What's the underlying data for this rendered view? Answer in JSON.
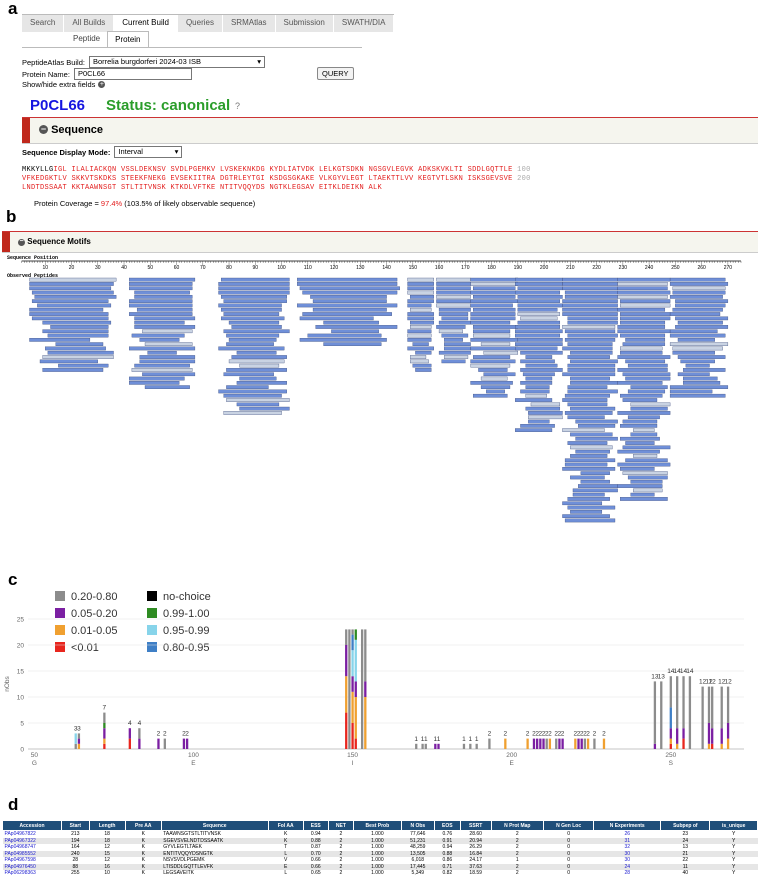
{
  "panel_labels": [
    "a",
    "b",
    "c",
    "d"
  ],
  "nav": {
    "tabs": [
      "Search",
      "All Builds",
      "Current Build",
      "Queries",
      "SRMAtlas",
      "Submission",
      "SWATH/DIA"
    ],
    "active_tab": "Current Build",
    "subtabs": [
      "Peptide",
      "Protein"
    ],
    "active_subtab": "Protein"
  },
  "form": {
    "build_label": "PeptideAtlas Build:",
    "build_value": "Borrelia burgdorferi 2024-03 ISB",
    "protein_label": "Protein Name:",
    "protein_value": "P0CL66",
    "query_button": "QUERY",
    "extra_fields_label": "Show/hide extra fields",
    "extra_fields_icon": "plus-circle-icon"
  },
  "protein": {
    "id": "P0CL66",
    "status": "Status: canonical",
    "help": "?"
  },
  "sequence_section": {
    "title": "Sequence",
    "collapse_icon": "minus-circle-icon",
    "display_mode_label": "Sequence Display Mode:",
    "display_mode_value": "Interval",
    "lines": [
      {
        "lead": "MKKYLLG",
        "text": "IGL ILALIACKQN VSSLDEKNSV SVDLPGEMKV LVSKEKNKDG KYDLIATVDK LELKGTSDKN NGSGVLEGVK ADKSKVKLTI SDDLGQTTLE",
        "num": "100"
      },
      {
        "lead": "",
        "text": "VFKEDGKTLV SKKVTSKDKS STEEKFNEKG EVSEKIITRA DGTRLEYTGI KSDGSGKAKE VLKGYVLEGT LTAEKTTLVV KEGTVTLSKN ISKSGEVSVE",
        "num": "200"
      },
      {
        "lead": "",
        "text": "LNDTDSSAAT KKTAAWNSGT STLTITVNSK KTKDLVFTKE NTITVQQYDS NGTKLEGSAV EITKLDEIKN ALK",
        "num": ""
      }
    ],
    "coverage_prefix": "Protein Coverage = ",
    "coverage_value": "97.4%",
    "coverage_suffix": " (103.5% of likely observable sequence)"
  },
  "motifs_section": {
    "title": "Sequence Motifs",
    "collapse_icon": "minus-circle-icon",
    "position_label": "Sequence Position",
    "peptides_label": "Observed Peptides",
    "ticks": [
      10,
      20,
      30,
      40,
      50,
      60,
      70,
      80,
      90,
      100,
      110,
      120,
      130,
      140,
      150,
      160,
      170,
      180,
      190,
      200,
      210,
      220,
      230,
      240,
      250,
      260,
      270
    ],
    "colors": {
      "peptide": "#6f8fd8",
      "peptide_light": "#c9d3e3",
      "border": "#3a4a7a"
    }
  },
  "chart_data": {
    "type": "bar",
    "ylabel": "nObs",
    "ylim": [
      0,
      25
    ],
    "yticks": [
      0,
      5,
      10,
      15,
      20,
      25
    ],
    "xlim": [
      48,
      273
    ],
    "xticks": [
      {
        "pos": 50,
        "aa": "G"
      },
      {
        "pos": 100,
        "aa": "E"
      },
      {
        "pos": 150,
        "aa": "I"
      },
      {
        "pos": 200,
        "aa": "E"
      },
      {
        "pos": 250,
        "aa": "S"
      }
    ],
    "legend": [
      {
        "label": "0.20-0.80",
        "color": "#8c8c8c"
      },
      {
        "label": "no-choice",
        "color": "#000000"
      },
      {
        "label": "0.05-0.20",
        "color": "#7b1fa2"
      },
      {
        "label": "0.99-1.00",
        "color": "#2e8b22"
      },
      {
        "label": "0.01-0.05",
        "color": "#f0a030"
      },
      {
        "label": "0.95-0.99",
        "color": "#87d4ea"
      },
      {
        "label": "<0.01",
        "color": "#e8261e"
      },
      {
        "label": "0.80-0.95",
        "color": "#3f7fc6"
      }
    ],
    "bars": [
      {
        "x": 63,
        "segs": [
          [
            "#8c8c8c",
            1
          ],
          [
            "#87d4ea",
            2
          ]
        ],
        "label": "3"
      },
      {
        "x": 64,
        "segs": [
          [
            "#f0a030",
            1
          ],
          [
            "#7b1fa2",
            1
          ],
          [
            "#8c8c8c",
            1
          ]
        ],
        "label": "3"
      },
      {
        "x": 72,
        "segs": [
          [
            "#e8261e",
            1
          ],
          [
            "#f0a030",
            1
          ],
          [
            "#7b1fa2",
            2
          ],
          [
            "#2e8b22",
            1
          ],
          [
            "#8c8c8c",
            2
          ]
        ],
        "label": "7"
      },
      {
        "x": 80,
        "segs": [
          [
            "#e8261e",
            2
          ],
          [
            "#7b1fa2",
            2
          ]
        ],
        "label": "4"
      },
      {
        "x": 83,
        "segs": [
          [
            "#7b1fa2",
            2
          ],
          [
            "#8c8c8c",
            2
          ]
        ],
        "label": "4"
      },
      {
        "x": 89,
        "segs": [
          [
            "#7b1fa2",
            2
          ]
        ],
        "label": "2"
      },
      {
        "x": 91,
        "segs": [
          [
            "#8c8c8c",
            2
          ]
        ],
        "label": "2"
      },
      {
        "x": 97,
        "segs": [
          [
            "#7b1fa2",
            2
          ]
        ],
        "label": "2"
      },
      {
        "x": 98,
        "segs": [
          [
            "#7b1fa2",
            2
          ]
        ],
        "label": "2"
      },
      {
        "x": 148,
        "segs": [
          [
            "#e8261e",
            7
          ],
          [
            "#f0a030",
            7
          ],
          [
            "#7b1fa2",
            6
          ],
          [
            "#8c8c8c",
            3
          ]
        ],
        "label": ""
      },
      {
        "x": 149,
        "segs": [
          [
            "#8c8c8c",
            23
          ]
        ],
        "label": ""
      },
      {
        "x": 150,
        "segs": [
          [
            "#e8261e",
            5
          ],
          [
            "#f0a030",
            6
          ],
          [
            "#7b1fa2",
            3
          ],
          [
            "#87d4ea",
            5
          ],
          [
            "#3f7fc6",
            3
          ],
          [
            "#8c8c8c",
            1
          ]
        ],
        "label": ""
      },
      {
        "x": 151,
        "segs": [
          [
            "#e8261e",
            2
          ],
          [
            "#f0a030",
            8
          ],
          [
            "#7b1fa2",
            3
          ],
          [
            "#87d4ea",
            8
          ],
          [
            "#2e8b22",
            2
          ]
        ],
        "label": ""
      },
      {
        "x": 153,
        "segs": [
          [
            "#8c8c8c",
            23
          ]
        ],
        "label": ""
      },
      {
        "x": 154,
        "segs": [
          [
            "#f0a030",
            10
          ],
          [
            "#7b1fa2",
            3
          ],
          [
            "#8c8c8c",
            10
          ]
        ],
        "label": ""
      },
      {
        "x": 170,
        "segs": [
          [
            "#8c8c8c",
            1
          ]
        ],
        "label": "1"
      },
      {
        "x": 172,
        "segs": [
          [
            "#8c8c8c",
            1
          ]
        ],
        "label": "1"
      },
      {
        "x": 173,
        "segs": [
          [
            "#8c8c8c",
            1
          ]
        ],
        "label": "1"
      },
      {
        "x": 176,
        "segs": [
          [
            "#7b1fa2",
            1
          ]
        ],
        "label": "1"
      },
      {
        "x": 177,
        "segs": [
          [
            "#7b1fa2",
            1
          ]
        ],
        "label": "1"
      },
      {
        "x": 185,
        "segs": [
          [
            "#8c8c8c",
            1
          ]
        ],
        "label": "1"
      },
      {
        "x": 187,
        "segs": [
          [
            "#8c8c8c",
            1
          ]
        ],
        "label": "1"
      },
      {
        "x": 189,
        "segs": [
          [
            "#8c8c8c",
            1
          ]
        ],
        "label": "1"
      },
      {
        "x": 193,
        "segs": [
          [
            "#8c8c8c",
            2
          ]
        ],
        "label": "2"
      },
      {
        "x": 198,
        "segs": [
          [
            "#f0a030",
            2
          ]
        ],
        "label": "2"
      },
      {
        "x": 205,
        "segs": [
          [
            "#f0a030",
            2
          ]
        ],
        "label": "2"
      },
      {
        "x": 207,
        "segs": [
          [
            "#7b1fa2",
            2
          ]
        ],
        "label": "2"
      },
      {
        "x": 208,
        "segs": [
          [
            "#7b1fa2",
            2
          ]
        ],
        "label": "2"
      },
      {
        "x": 209,
        "segs": [
          [
            "#7b1fa2",
            2
          ]
        ],
        "label": "2"
      },
      {
        "x": 210,
        "segs": [
          [
            "#7b1fa2",
            2
          ]
        ],
        "label": "2"
      },
      {
        "x": 211,
        "segs": [
          [
            "#8c8c8c",
            2
          ]
        ],
        "label": "2"
      },
      {
        "x": 212,
        "segs": [
          [
            "#f0a030",
            2
          ]
        ],
        "label": "2"
      },
      {
        "x": 214,
        "segs": [
          [
            "#8c8c8c",
            2
          ]
        ],
        "label": "2"
      },
      {
        "x": 215,
        "segs": [
          [
            "#7b1fa2",
            2
          ]
        ],
        "label": "2"
      },
      {
        "x": 216,
        "segs": [
          [
            "#7b1fa2",
            2
          ]
        ],
        "label": "2"
      },
      {
        "x": 220,
        "segs": [
          [
            "#f0a030",
            2
          ]
        ],
        "label": "2"
      },
      {
        "x": 221,
        "segs": [
          [
            "#7b1fa2",
            2
          ]
        ],
        "label": "2"
      },
      {
        "x": 222,
        "segs": [
          [
            "#7b1fa2",
            2
          ]
        ],
        "label": "2"
      },
      {
        "x": 223,
        "segs": [
          [
            "#8c8c8c",
            2
          ]
        ],
        "label": "2"
      },
      {
        "x": 224,
        "segs": [
          [
            "#f0a030",
            2
          ]
        ],
        "label": "2"
      },
      {
        "x": 226,
        "segs": [
          [
            "#8c8c8c",
            2
          ]
        ],
        "label": "2"
      },
      {
        "x": 229,
        "segs": [
          [
            "#f0a030",
            2
          ]
        ],
        "label": "2"
      },
      {
        "x": 245,
        "segs": [
          [
            "#7b1fa2",
            1
          ],
          [
            "#8c8c8c",
            12
          ]
        ],
        "label": "13"
      },
      {
        "x": 247,
        "segs": [
          [
            "#8c8c8c",
            13
          ]
        ],
        "label": "13"
      },
      {
        "x": 250,
        "segs": [
          [
            "#e8261e",
            1
          ],
          [
            "#f0a030",
            1
          ],
          [
            "#7b1fa2",
            2
          ],
          [
            "#3f7fc6",
            4
          ],
          [
            "#8c8c8c",
            6
          ]
        ],
        "label": "14"
      },
      {
        "x": 252,
        "segs": [
          [
            "#f0a030",
            1
          ],
          [
            "#7b1fa2",
            3
          ],
          [
            "#8c8c8c",
            10
          ]
        ],
        "label": "14"
      },
      {
        "x": 254,
        "segs": [
          [
            "#e8261e",
            2
          ],
          [
            "#7b1fa2",
            2
          ],
          [
            "#8c8c8c",
            10
          ]
        ],
        "label": "14"
      },
      {
        "x": 256,
        "segs": [
          [
            "#8c8c8c",
            14
          ]
        ],
        "label": "14"
      },
      {
        "x": 260,
        "segs": [
          [
            "#8c8c8c",
            12
          ]
        ],
        "label": "12"
      },
      {
        "x": 262,
        "segs": [
          [
            "#f0a030",
            1
          ],
          [
            "#7b1fa2",
            4
          ],
          [
            "#8c8c8c",
            7
          ]
        ],
        "label": "12"
      },
      {
        "x": 263,
        "segs": [
          [
            "#e8261e",
            1
          ],
          [
            "#7b1fa2",
            3
          ],
          [
            "#8c8c8c",
            8
          ]
        ],
        "label": "12"
      },
      {
        "x": 266,
        "segs": [
          [
            "#f0a030",
            1
          ],
          [
            "#7b1fa2",
            3
          ],
          [
            "#8c8c8c",
            8
          ]
        ],
        "label": "12"
      },
      {
        "x": 268,
        "segs": [
          [
            "#f0a030",
            2
          ],
          [
            "#7b1fa2",
            3
          ],
          [
            "#8c8c8c",
            7
          ]
        ],
        "label": "12"
      }
    ]
  },
  "table": {
    "headers": [
      "Accession",
      "Start",
      "Length",
      "Pre AA",
      "Sequence",
      "Fol AA",
      "ESS",
      "NET",
      "Best Prob",
      "N Obs",
      "EOS",
      "SSRT",
      "N Prot Map",
      "N Gen Loc",
      "N Experiments",
      "Subpep of",
      "is_unique"
    ],
    "rows": [
      [
        "PAp04967822",
        "213",
        "18",
        "K",
        "TAAWNSGTSTLTITVNSK",
        "K",
        "0.94",
        "2",
        "1.000",
        "77,646",
        "0.76",
        "28.60",
        "2",
        "0",
        "26",
        "23",
        "Y"
      ],
      [
        "PAp04967322",
        "194",
        "18",
        "K",
        "SGEVSVELNDTDSSAATK",
        "K",
        "0.88",
        "2",
        "1.000",
        "51,231",
        "0.91",
        "20.94",
        "2",
        "0",
        "31",
        "24",
        "Y"
      ],
      [
        "PAp04968747",
        "164",
        "12",
        "K",
        "GYVLEGTLTAEK",
        "T",
        "0.87",
        "2",
        "1.000",
        "48,259",
        "0.94",
        "26.29",
        "2",
        "0",
        "32",
        "13",
        "Y"
      ],
      [
        "PAp04985552",
        "240",
        "15",
        "K",
        "ENTITVQQYDSNGTK",
        "L",
        "0.70",
        "2",
        "1.000",
        "13,505",
        "0.88",
        "16.84",
        "2",
        "0",
        "30",
        "21",
        "Y"
      ],
      [
        "PAp04967598",
        "28",
        "12",
        "K",
        "NSVSVDLPGEMK",
        "V",
        "0.66",
        "2",
        "1.000",
        "6,018",
        "0.86",
        "24.17",
        "1",
        "0",
        "30",
        "22",
        "Y"
      ],
      [
        "PAp04976450",
        "88",
        "16",
        "K",
        "LTISDDLGQTTLEVFK",
        "E",
        "0.66",
        "2",
        "1.000",
        "17,445",
        "0.71",
        "37.63",
        "2",
        "0",
        "24",
        "11",
        "Y"
      ],
      [
        "PAp06298363",
        "255",
        "10",
        "K",
        "LEGSAVEITK",
        "L",
        "0.65",
        "2",
        "1.000",
        "5,349",
        "0.82",
        "18.59",
        "2",
        "0",
        "28",
        "40",
        "Y"
      ]
    ]
  }
}
